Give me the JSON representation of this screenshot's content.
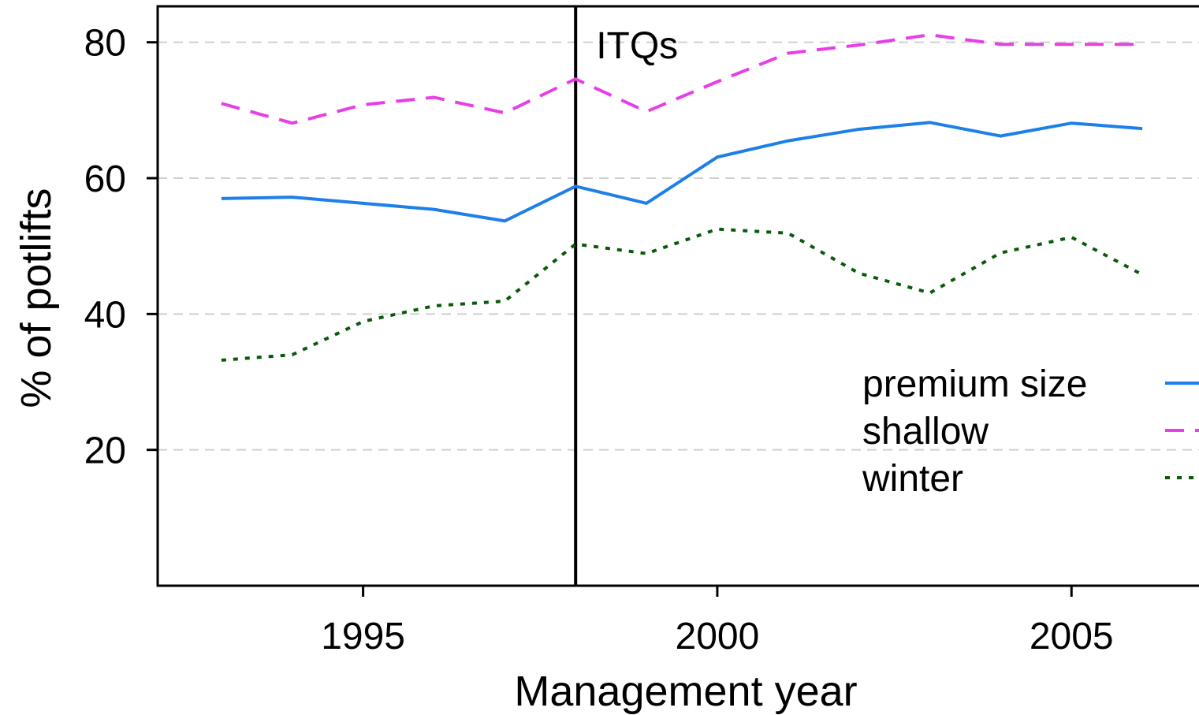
{
  "chart_data": {
    "type": "line",
    "x_label": "Management year",
    "y_label": "% of potlifts",
    "x": [
      1993,
      1994,
      1995,
      1996,
      1997,
      1998,
      1999,
      2000,
      2001,
      2002,
      2003,
      2004,
      2005,
      2006
    ],
    "series": [
      {
        "name": "premium size",
        "color": "#1e7fe8",
        "line_style": "solid",
        "values": [
          57.0,
          57.2,
          56.3,
          55.4,
          53.7,
          58.8,
          56.3,
          63.1,
          65.5,
          67.2,
          68.2,
          66.2,
          68.1,
          67.3
        ]
      },
      {
        "name": "shallow",
        "color": "#e83ee8",
        "line_style": "dashed",
        "values": [
          71.0,
          68.1,
          70.8,
          71.9,
          69.6,
          74.6,
          69.8,
          74.2,
          78.4,
          79.6,
          81.1,
          79.7,
          79.7,
          79.7
        ]
      },
      {
        "name": "winter",
        "color": "#0a5a0a",
        "line_style": "dotted",
        "values": [
          33.2,
          34.0,
          38.9,
          41.2,
          41.9,
          50.3,
          48.9,
          52.5,
          51.9,
          46.0,
          43.1,
          49.0,
          51.3,
          45.8
        ]
      }
    ],
    "vline": 1998,
    "vline_label": "ITQs",
    "xlim": [
      1992.1,
      2006.8
    ],
    "xticks": [
      1995,
      2000,
      2005
    ],
    "ylim": [
      0,
      85.3
    ],
    "yticks": [
      20,
      40,
      60,
      80
    ],
    "grid": true,
    "legend": "lower right"
  }
}
